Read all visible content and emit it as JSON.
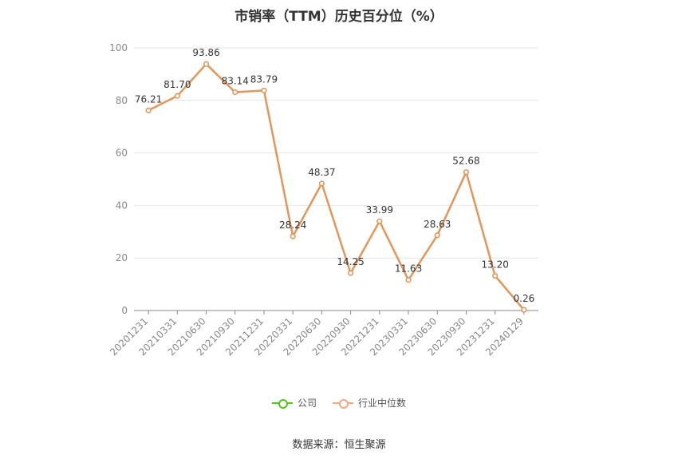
{
  "chart_data": {
    "type": "line",
    "title": "市销率（TTM）历史百分位（%）",
    "categories": [
      "20201231",
      "20210331",
      "20210630",
      "20210930",
      "20211231",
      "20220331",
      "20220630",
      "20220930",
      "20221231",
      "20230331",
      "20230630",
      "20230930",
      "20231231",
      "20240129"
    ],
    "series": [
      {
        "name": "公司",
        "color": "#52c41a",
        "values": [
          76.21,
          81.7,
          93.86,
          83.14,
          83.79,
          28.24,
          48.37,
          14.25,
          33.99,
          11.63,
          28.63,
          52.68,
          13.2,
          0.26
        ]
      },
      {
        "name": "行业中位数",
        "color": "#f4a582",
        "values": [
          76.21,
          81.7,
          93.86,
          83.14,
          83.79,
          28.24,
          48.37,
          14.25,
          33.99,
          11.63,
          28.63,
          52.68,
          13.2,
          0.26
        ]
      }
    ],
    "data_labels": [
      "76.21",
      "81.70",
      "93.86",
      "83.14",
      "83.79",
      "28.24",
      "48.37",
      "14.25",
      "33.99",
      "11.63",
      "28.63",
      "52.68",
      "13.20",
      "0.26"
    ],
    "line_color": "#e3965a",
    "yticks": [
      0,
      20,
      40,
      60,
      80,
      100
    ],
    "ylim": [
      0,
      100
    ],
    "grid": true,
    "legend_position": "bottom"
  },
  "legend": {
    "company": "公司",
    "industry": "行业中位数"
  },
  "source": "数据来源：恒生聚源"
}
